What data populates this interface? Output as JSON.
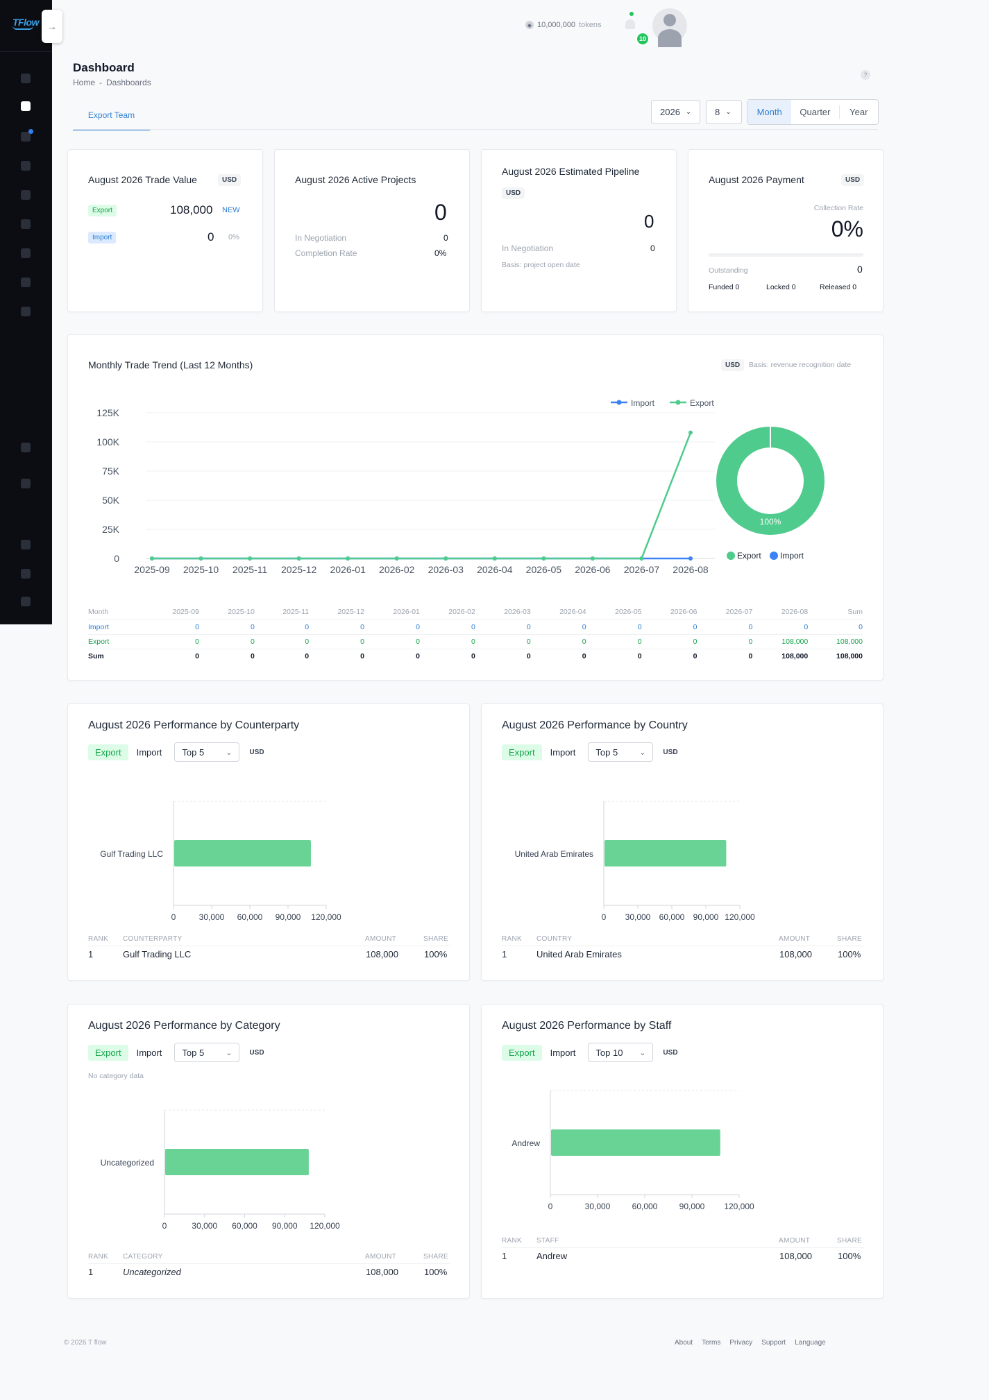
{
  "app": {
    "logo": "TFlow",
    "tokens": "10,000,000",
    "tokens_suffix": "tokens",
    "notifications": "10"
  },
  "page": {
    "title": "Dashboard",
    "breadcrumb": [
      "Home",
      "-",
      "Dashboards"
    ],
    "help": "?"
  },
  "team_tab": "Export Team",
  "filters": {
    "year": "2026",
    "month": "8",
    "periods": [
      "Month",
      "Quarter",
      "Year"
    ],
    "active_period": "Month",
    "chevron": "⌄"
  },
  "kpi": {
    "trade": {
      "title": "August 2026 Trade Value",
      "currency": "USD",
      "export_label": "Export",
      "export_value": "108,000",
      "export_badge": "NEW",
      "import_label": "Import",
      "import_value": "0",
      "import_pct": "0%"
    },
    "projects": {
      "title": "August 2026 Active Projects",
      "value": "0",
      "negotiation_label": "In Negotiation",
      "negotiation_value": "0",
      "completion_label": "Completion Rate",
      "completion_value": "0%"
    },
    "pipeline": {
      "title": "August 2026 Estimated Pipeline",
      "currency": "USD",
      "value": "0",
      "negotiation_label": "In Negotiation",
      "negotiation_value": "0",
      "basis": "Basis: project open date"
    },
    "payment": {
      "title": "August 2026 Payment",
      "currency": "USD",
      "collection_label": "Collection Rate",
      "collection_value": "0%",
      "collection_rate": 0,
      "outstanding_label": "Outstanding",
      "outstanding_value": "0",
      "funded": "Funded 0",
      "locked": "Locked 0",
      "released": "Released 0"
    }
  },
  "trend": {
    "title": "Monthly Trade Trend (Last 12 Months)",
    "currency": "USD",
    "basis": "Basis: revenue recognition date",
    "table": {
      "header": [
        "Month",
        "2025-09",
        "2025-10",
        "2025-11",
        "2025-12",
        "2026-01",
        "2026-02",
        "2026-03",
        "2026-04",
        "2026-05",
        "2026-06",
        "2026-07",
        "2026-08",
        "Sum"
      ],
      "import": [
        "Import",
        "0",
        "0",
        "0",
        "0",
        "0",
        "0",
        "0",
        "0",
        "0",
        "0",
        "0",
        "0",
        "0"
      ],
      "export": [
        "Export",
        "0",
        "0",
        "0",
        "0",
        "0",
        "0",
        "0",
        "0",
        "0",
        "0",
        "0",
        "108,000",
        "108,000"
      ],
      "sum": [
        "Sum",
        "0",
        "0",
        "0",
        "0",
        "0",
        "0",
        "0",
        "0",
        "0",
        "0",
        "0",
        "108,000",
        "108,000"
      ]
    }
  },
  "chart_data": [
    {
      "type": "line",
      "x": [
        "2025-09",
        "2025-10",
        "2025-11",
        "2025-12",
        "2026-01",
        "2026-02",
        "2026-03",
        "2026-04",
        "2026-05",
        "2026-06",
        "2026-07",
        "2026-08"
      ],
      "series": [
        {
          "name": "Import",
          "color": "#3b82f6",
          "values": [
            0,
            0,
            0,
            0,
            0,
            0,
            0,
            0,
            0,
            0,
            0,
            0
          ]
        },
        {
          "name": "Export",
          "color": "#4ecb8d",
          "values": [
            0,
            0,
            0,
            0,
            0,
            0,
            0,
            0,
            0,
            0,
            0,
            108000
          ]
        }
      ],
      "ylim": [
        0,
        125000
      ],
      "yticks": [
        0,
        25000,
        50000,
        75000,
        100000,
        125000
      ],
      "ytick_labels": [
        "0",
        "25K",
        "50K",
        "75K",
        "100K",
        "125K"
      ],
      "legend": "top-right",
      "grid": true
    },
    {
      "type": "pie",
      "labels": [
        "Export",
        "Import"
      ],
      "values": [
        100,
        0
      ],
      "colors": [
        "#4ecb8d",
        "#3b82f6"
      ],
      "data_label": "100%",
      "legend": "bottom"
    },
    {
      "type": "bar",
      "orientation": "horizontal",
      "categories": [
        "Gulf Trading LLC"
      ],
      "values": [
        108000
      ],
      "xlim": [
        0,
        120000
      ],
      "xticks": [
        "0",
        "30,000",
        "60,000",
        "90,000",
        "120,000"
      ]
    },
    {
      "type": "bar",
      "orientation": "horizontal",
      "categories": [
        "United Arab Emirates"
      ],
      "values": [
        108000
      ],
      "xlim": [
        0,
        120000
      ],
      "xticks": [
        "0",
        "30,000",
        "60,000",
        "90,000",
        "120,000"
      ]
    },
    {
      "type": "bar",
      "orientation": "horizontal",
      "categories": [
        "Uncategorized"
      ],
      "values": [
        108000
      ],
      "xlim": [
        0,
        120000
      ],
      "xticks": [
        "0",
        "30,000",
        "60,000",
        "90,000",
        "120,000"
      ]
    },
    {
      "type": "bar",
      "orientation": "horizontal",
      "categories": [
        "Andrew"
      ],
      "values": [
        108000
      ],
      "xlim": [
        0,
        120000
      ],
      "xticks": [
        "0",
        "30,000",
        "60,000",
        "90,000",
        "120,000"
      ]
    }
  ],
  "perf": {
    "counterparty": {
      "title": "August 2026 Performance by Counterparty",
      "export": "Export",
      "import": "Import",
      "top": "Top 5",
      "currency": "USD",
      "cols": [
        "RANK",
        "COUNTERPARTY",
        "AMOUNT",
        "SHARE"
      ],
      "row": [
        "1",
        "Gulf Trading LLC",
        "108,000",
        "100%"
      ]
    },
    "country": {
      "title": "August 2026 Performance by Country",
      "export": "Export",
      "import": "Import",
      "top": "Top 5",
      "currency": "USD",
      "cols": [
        "RANK",
        "COUNTRY",
        "AMOUNT",
        "SHARE"
      ],
      "row": [
        "1",
        "United Arab Emirates",
        "108,000",
        "100%"
      ]
    },
    "category": {
      "title": "August 2026 Performance by Category",
      "export": "Export",
      "import": "Import",
      "top": "Top 5",
      "currency": "USD",
      "note": "No category data",
      "cols": [
        "RANK",
        "CATEGORY",
        "AMOUNT",
        "SHARE"
      ],
      "row": [
        "1",
        "Uncategorized",
        "108,000",
        "100%"
      ]
    },
    "staff": {
      "title": "August 2026 Performance by Staff",
      "export": "Export",
      "import": "Import",
      "top": "Top 10",
      "currency": "USD",
      "cols": [
        "RANK",
        "STAFF",
        "AMOUNT",
        "SHARE"
      ],
      "row": [
        "1",
        "Andrew",
        "108,000",
        "100%"
      ]
    }
  },
  "footer": {
    "copyright": "© 2026 T flow",
    "links": [
      "About",
      "Terms",
      "Privacy",
      "Support",
      "Language"
    ]
  }
}
